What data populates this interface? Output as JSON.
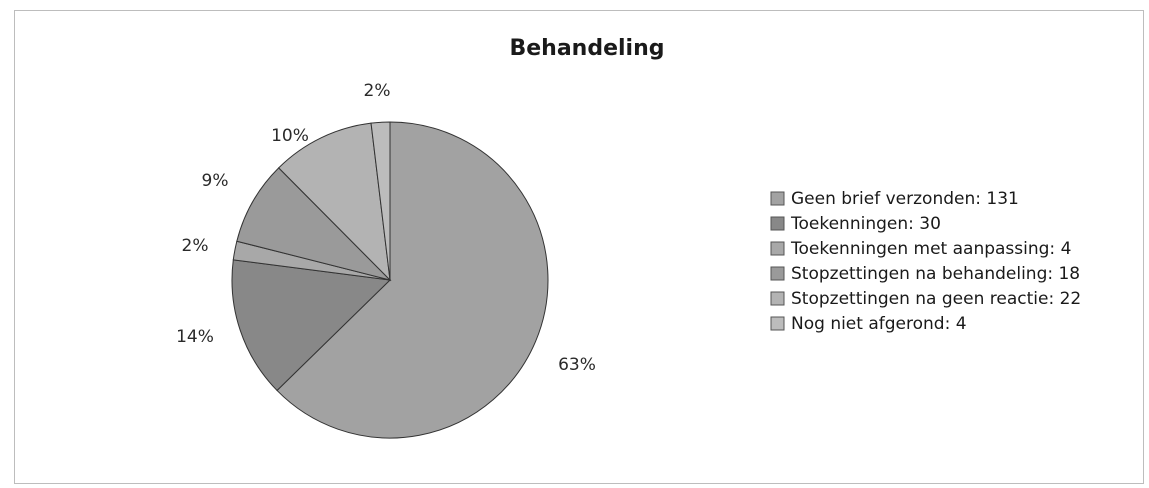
{
  "chart_data": {
    "type": "pie",
    "title": "Behandeling",
    "categories": [
      "Geen brief verzonden",
      "Toekenningen",
      "Toekenningen met aanpassing",
      "Stopzettingen na behandeling",
      "Stopzettingen na geen reactie",
      "Nog niet afgerond"
    ],
    "values": [
      131,
      30,
      4,
      18,
      22,
      4
    ],
    "percent_labels": [
      "63%",
      "14%",
      "2%",
      "9%",
      "10%",
      "2%"
    ],
    "legend_labels": [
      "Geen brief verzonden: 131",
      "Toekenningen: 30",
      "Toekenningen met aanpassing: 4",
      "Stopzettingen na behandeling: 18",
      "Stopzettingen na geen reactie: 22",
      "Nog niet afgerond: 4"
    ],
    "colors": [
      "#a2a2a2",
      "#888888",
      "#a8a8a8",
      "#9a9a9a",
      "#b3b3b3",
      "#bcbcbc"
    ],
    "legend_position": "right"
  }
}
